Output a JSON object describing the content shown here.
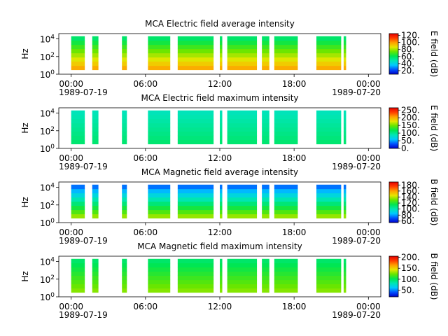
{
  "figure": {
    "time_start_label": "00:00",
    "time_start_date": "1989-07-19",
    "time_end_date": "1989-07-20",
    "colors": {
      "colormap": [
        "#0000c8",
        "#0050ff",
        "#00c8ff",
        "#00e6b4",
        "#00e650",
        "#64e600",
        "#e6e600",
        "#ffa000",
        "#ff3c00",
        "#e60000"
      ]
    }
  },
  "chart_data": [
    {
      "type": "heatmap",
      "title": "MCA  Electric field average intensity",
      "ylabel": "Hz",
      "colorbar_label": "E field (dB)",
      "colorbar_range": [
        10,
        125
      ],
      "colorbar_ticks": [
        "20.",
        "40.",
        "60.",
        "80.",
        "100.",
        "120."
      ],
      "x_ticks": [
        "00:00",
        "06:00",
        "12:00",
        "18:00",
        "00:00"
      ],
      "y_ticks": [
        "10^0",
        "10^2",
        "10^4"
      ],
      "x_range_hours": [
        -1,
        25
      ],
      "y_range_log10": [
        0,
        4.6
      ],
      "data_log10_range": [
        0.5,
        4.3
      ],
      "coverage_hours": [
        [
          0,
          1.1
        ],
        [
          1.7,
          2.2
        ],
        [
          4.1,
          4.5
        ],
        [
          6.2,
          8.0
        ],
        [
          8.6,
          11.5
        ],
        [
          12.0,
          12.2
        ],
        [
          12.6,
          15.0
        ],
        [
          15.4,
          16.0
        ],
        [
          16.4,
          18.3
        ],
        [
          19.8,
          21.8
        ],
        [
          22.0,
          22.2
        ]
      ],
      "intensity_low_freq": 100,
      "intensity_high_freq": 55
    },
    {
      "type": "heatmap",
      "title": "MCA  Electric field maximum intensity",
      "ylabel": "Hz",
      "colorbar_label": "E field (dB)",
      "colorbar_range": [
        0,
        265
      ],
      "colorbar_ticks": [
        "0.",
        "50.",
        "100.",
        "150.",
        "200.",
        "250."
      ],
      "x_ticks": [
        "00:00",
        "06:00",
        "12:00",
        "18:00",
        "00:00"
      ],
      "y_ticks": [
        "10^0",
        "10^2",
        "10^4"
      ],
      "x_range_hours": [
        -1,
        25
      ],
      "y_range_log10": [
        0,
        4.6
      ],
      "data_log10_range": [
        0.5,
        4.3
      ],
      "coverage_hours": [
        [
          0,
          1.1
        ],
        [
          1.7,
          2.2
        ],
        [
          4.1,
          4.5
        ],
        [
          6.2,
          8.0
        ],
        [
          8.6,
          11.5
        ],
        [
          12.0,
          12.2
        ],
        [
          12.6,
          15.0
        ],
        [
          15.4,
          16.0
        ],
        [
          16.4,
          18.3
        ],
        [
          19.8,
          21.8
        ],
        [
          22.0,
          22.2
        ]
      ],
      "intensity_low_freq": 110,
      "intensity_high_freq": 85
    },
    {
      "type": "heatmap",
      "title": "MCA  Magnetic field average intensity",
      "ylabel": "Hz",
      "colorbar_label": "B field (dB)",
      "colorbar_range": [
        55,
        190
      ],
      "colorbar_ticks": [
        "60.",
        "80.",
        "100.",
        "120.",
        "140.",
        "160.",
        "180."
      ],
      "x_ticks": [
        "00:00",
        "06:00",
        "12:00",
        "18:00",
        "00:00"
      ],
      "y_ticks": [
        "10^0",
        "10^2",
        "10^4"
      ],
      "x_range_hours": [
        -1,
        25
      ],
      "y_range_log10": [
        0,
        4.6
      ],
      "data_log10_range": [
        0.5,
        4.3
      ],
      "coverage_hours": [
        [
          0,
          1.1
        ],
        [
          1.7,
          2.2
        ],
        [
          4.1,
          4.5
        ],
        [
          6.2,
          8.0
        ],
        [
          8.6,
          11.5
        ],
        [
          12.0,
          12.2
        ],
        [
          12.6,
          15.0
        ],
        [
          15.4,
          16.0
        ],
        [
          16.4,
          18.3
        ],
        [
          19.8,
          21.8
        ],
        [
          22.0,
          22.2
        ]
      ],
      "intensity_low_freq": 140,
      "intensity_high_freq": 70
    },
    {
      "type": "heatmap",
      "title": "MCA  Magnetic field maximum intensity",
      "ylabel": "Hz",
      "colorbar_label": "B field (dB)",
      "colorbar_range": [
        20,
        205
      ],
      "colorbar_ticks": [
        "50.",
        "100.",
        "150.",
        "200."
      ],
      "x_ticks": [
        "00:00",
        "06:00",
        "12:00",
        "18:00",
        "00:00"
      ],
      "y_ticks": [
        "10^0",
        "10^2",
        "10^4"
      ],
      "x_range_hours": [
        -1,
        25
      ],
      "y_range_log10": [
        0,
        4.6
      ],
      "data_log10_range": [
        0.5,
        4.3
      ],
      "coverage_hours": [
        [
          0,
          1.1
        ],
        [
          1.7,
          2.2
        ],
        [
          4.1,
          4.5
        ],
        [
          6.2,
          8.0
        ],
        [
          8.6,
          11.5
        ],
        [
          12.0,
          12.2
        ],
        [
          12.6,
          15.0
        ],
        [
          15.4,
          16.0
        ],
        [
          16.4,
          18.3
        ],
        [
          19.8,
          21.8
        ],
        [
          22.0,
          22.2
        ]
      ],
      "intensity_low_freq": 130,
      "intensity_high_freq": 95
    }
  ]
}
